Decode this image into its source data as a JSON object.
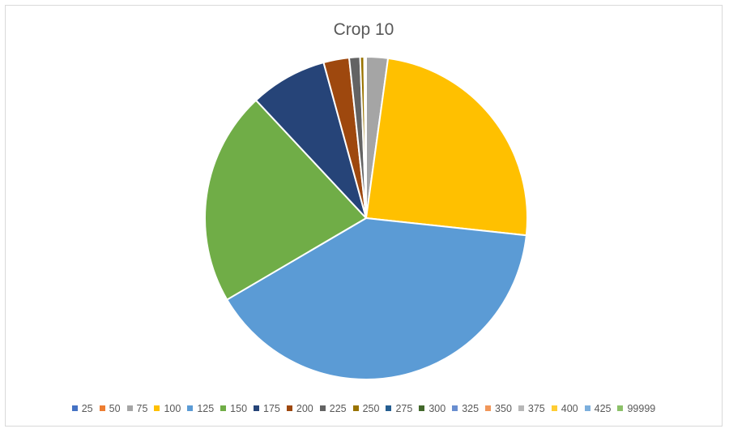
{
  "chart_data": {
    "type": "pie",
    "title": "Crop 10",
    "legend_position": "bottom",
    "categories": [
      "25",
      "50",
      "75",
      "100",
      "125",
      "150",
      "175",
      "200",
      "225",
      "250",
      "275",
      "300",
      "325",
      "350",
      "375",
      "400",
      "425",
      "99999"
    ],
    "values": [
      0,
      0,
      2.2,
      24.8,
      40.3,
      21.7,
      7.8,
      2.6,
      1.1,
      0.4,
      0.1,
      0.1,
      0,
      0,
      0,
      0,
      0,
      0
    ],
    "colors": [
      "#4472c4",
      "#ed7d31",
      "#a5a5a5",
      "#ffc000",
      "#5b9bd5",
      "#70ad47",
      "#264478",
      "#9e480e",
      "#636363",
      "#997300",
      "#255e91",
      "#43682b",
      "#698ed0",
      "#f1975a",
      "#b7b7b7",
      "#ffcd33",
      "#7cafdd",
      "#8cc168"
    ]
  }
}
